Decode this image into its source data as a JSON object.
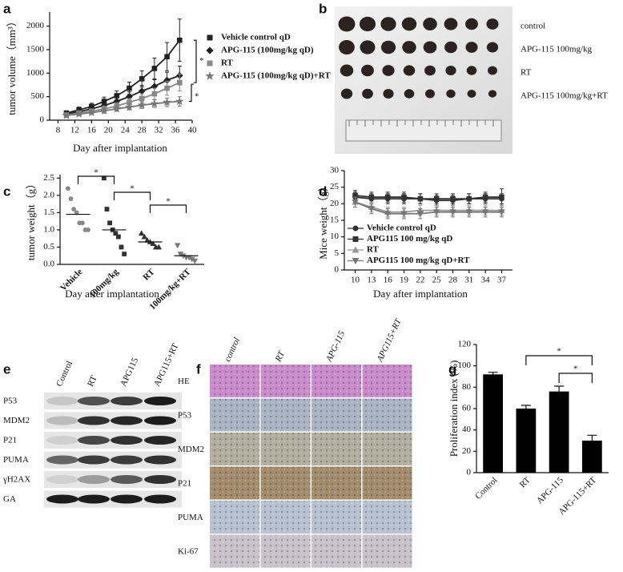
{
  "chart_data": [
    {
      "panel": "a",
      "type": "line",
      "x_label": "Day after implantation",
      "y_label": "tumor volume（mm³）",
      "x": [
        10,
        13,
        16,
        19,
        22,
        25,
        28,
        31,
        34,
        37
      ],
      "xlim": [
        6,
        40
      ],
      "xticks": [
        8,
        12,
        16,
        20,
        24,
        28,
        32,
        36,
        40
      ],
      "ylim": [
        0,
        2300
      ],
      "yticks": [
        0,
        500,
        1000,
        1500,
        2000
      ],
      "series": [
        {
          "name": "Vehicle control qD",
          "color": "#222222",
          "marker": "square",
          "values": [
            150,
            220,
            290,
            400,
            520,
            680,
            880,
            1100,
            1350,
            1700
          ],
          "errors": [
            50,
            60,
            70,
            90,
            100,
            130,
            170,
            220,
            300,
            450
          ]
        },
        {
          "name": "APG-115 (100mg/kg qD)",
          "color": "#222222",
          "marker": "diamond",
          "values": [
            130,
            180,
            240,
            310,
            400,
            500,
            620,
            720,
            850,
            950
          ],
          "errors": [
            40,
            50,
            60,
            70,
            80,
            100,
            120,
            140,
            170,
            200
          ]
        },
        {
          "name": "RT",
          "color": "#888888",
          "marker": "square",
          "values": [
            110,
            150,
            190,
            240,
            300,
            380,
            460,
            560,
            680,
            800
          ],
          "errors": [
            30,
            40,
            50,
            60,
            70,
            80,
            100,
            120,
            150,
            180
          ]
        },
        {
          "name": "APG-115 (100mg/kg qD)+RT",
          "color": "#777777",
          "marker": "star",
          "values": [
            100,
            130,
            160,
            200,
            240,
            280,
            320,
            350,
            380,
            400
          ],
          "errors": [
            30,
            30,
            40,
            50,
            50,
            60,
            70,
            80,
            90,
            100
          ]
        }
      ],
      "annotations": [
        "*",
        "*"
      ]
    },
    {
      "panel": "c",
      "type": "scatter",
      "x_label": "Day after implantation",
      "y_label": "tumor weight（g）",
      "categories": [
        "Vehicle",
        "100mg/kg",
        "RT",
        "100mg/kg+RT"
      ],
      "points": [
        [
          2.2,
          1.9,
          1.6,
          1.5,
          1.2,
          1.2,
          1.0,
          1.0
        ],
        [
          2.5,
          1.6,
          1.2,
          1.0,
          0.9,
          0.8,
          0.5,
          0.3
        ],
        [
          0.9,
          0.8,
          0.7,
          0.65,
          0.6,
          0.5,
          0.5
        ],
        [
          0.55,
          0.3,
          0.25,
          0.2,
          0.2,
          0.15,
          0.1
        ]
      ],
      "means": [
        1.45,
        1.0,
        0.65,
        0.25
      ],
      "colors": [
        "#888888",
        "#333333",
        "#333333",
        "#777777"
      ],
      "markers": [
        "circle",
        "square",
        "triangle",
        "triangle-down"
      ],
      "ylim": [
        0,
        2.6
      ],
      "yticks": [
        {
          "value": 0,
          "label": "0.0"
        },
        {
          "value": 0.5,
          "label": "0.5"
        },
        {
          "value": 1,
          "label": "1.0"
        },
        {
          "value": 1.5,
          "label": "1.5"
        },
        {
          "value": 2,
          "label": "2.0"
        },
        {
          "value": 2.5,
          "label": "2.5"
        }
      ],
      "annotations": [
        "*",
        "*",
        "*"
      ]
    },
    {
      "panel": "d",
      "type": "line",
      "x_label": "Day after implantation",
      "y_label": "Mice weight（g）",
      "x": [
        10,
        13,
        16,
        19,
        22,
        25,
        28,
        31,
        34,
        37
      ],
      "xlim": [
        8,
        39
      ],
      "xticks": [
        10,
        13,
        16,
        19,
        22,
        25,
        28,
        31,
        34,
        37
      ],
      "ylim": [
        0,
        30
      ],
      "yticks": [
        0,
        5,
        10,
        15,
        20,
        25,
        30
      ],
      "series": [
        {
          "name": "Vehicle control qD",
          "color": "#333333",
          "marker": "circle",
          "values": [
            22,
            21.5,
            21.5,
            21.5,
            21.5,
            21,
            21,
            21.5,
            21.5,
            21.5
          ],
          "errors": [
            1.5,
            1.5,
            1.5,
            1.5,
            1.5,
            1.5,
            1.5,
            1.5,
            1.5,
            1.5
          ]
        },
        {
          "name": "APG115 100 mg/kg qD",
          "color": "#333333",
          "marker": "square",
          "values": [
            22.5,
            22,
            22,
            22,
            21.5,
            21.5,
            21.5,
            21.5,
            22,
            22
          ],
          "errors": [
            1.5,
            1.5,
            1.5,
            1.5,
            1.5,
            1.5,
            1.5,
            1.5,
            1.5,
            2.5
          ]
        },
        {
          "name": "RT",
          "color": "#999999",
          "marker": "triangle",
          "values": [
            20.5,
            19,
            17.5,
            17.5,
            18,
            18,
            18,
            18,
            18,
            18
          ],
          "errors": [
            1.5,
            1.5,
            1.5,
            1.5,
            1.5,
            1.5,
            1.5,
            1.5,
            1.5,
            1.5
          ]
        },
        {
          "name": "APG115 100 mg/kg qD+RT",
          "color": "#777777",
          "marker": "triangle-down",
          "values": [
            20.5,
            18.5,
            17,
            17,
            17,
            17.5,
            17.5,
            17.5,
            17.5,
            17.5
          ],
          "errors": [
            1.5,
            1.5,
            1.5,
            1.5,
            1.5,
            1.5,
            1.5,
            1.5,
            1.5,
            1.5
          ]
        }
      ]
    },
    {
      "panel": "g",
      "type": "bar",
      "y_label": "Proliferation index (%)",
      "categories": [
        "Control",
        "RT",
        "APG-115",
        "APG-115+RT"
      ],
      "values": [
        92,
        60,
        76,
        30
      ],
      "errors": [
        2,
        3,
        5,
        5
      ],
      "color": "#000000",
      "ylim": [
        0,
        120
      ],
      "yticks": [
        0,
        20,
        40,
        60,
        80,
        100,
        120
      ],
      "annotations": [
        "*",
        "*"
      ]
    }
  ],
  "tumor_photo": {
    "panel": "b",
    "row_labels": [
      "control",
      "APG-115 100mg/kg",
      "RT",
      "APG-115 100mg/kg+RT"
    ]
  },
  "western_blot": {
    "panel": "e",
    "columns": [
      "Control",
      "RT",
      "APG115",
      "APG115+RT"
    ],
    "rows": [
      "P53",
      "MDM2",
      "P21",
      "PUMA",
      "γH2AX",
      "GA"
    ]
  },
  "ihc": {
    "panel": "f",
    "columns": [
      "control",
      "RT",
      "APG-115",
      "APG115+RT"
    ],
    "rows": [
      "HE",
      "P53",
      "MDM2",
      "P21",
      "PUMA",
      "Ki-67"
    ],
    "row_colors": [
      "#c98bc9",
      "#aab3c2",
      "#b3ad9f",
      "#a38c6c",
      "#b8c1d0",
      "#c9c2c9"
    ]
  }
}
